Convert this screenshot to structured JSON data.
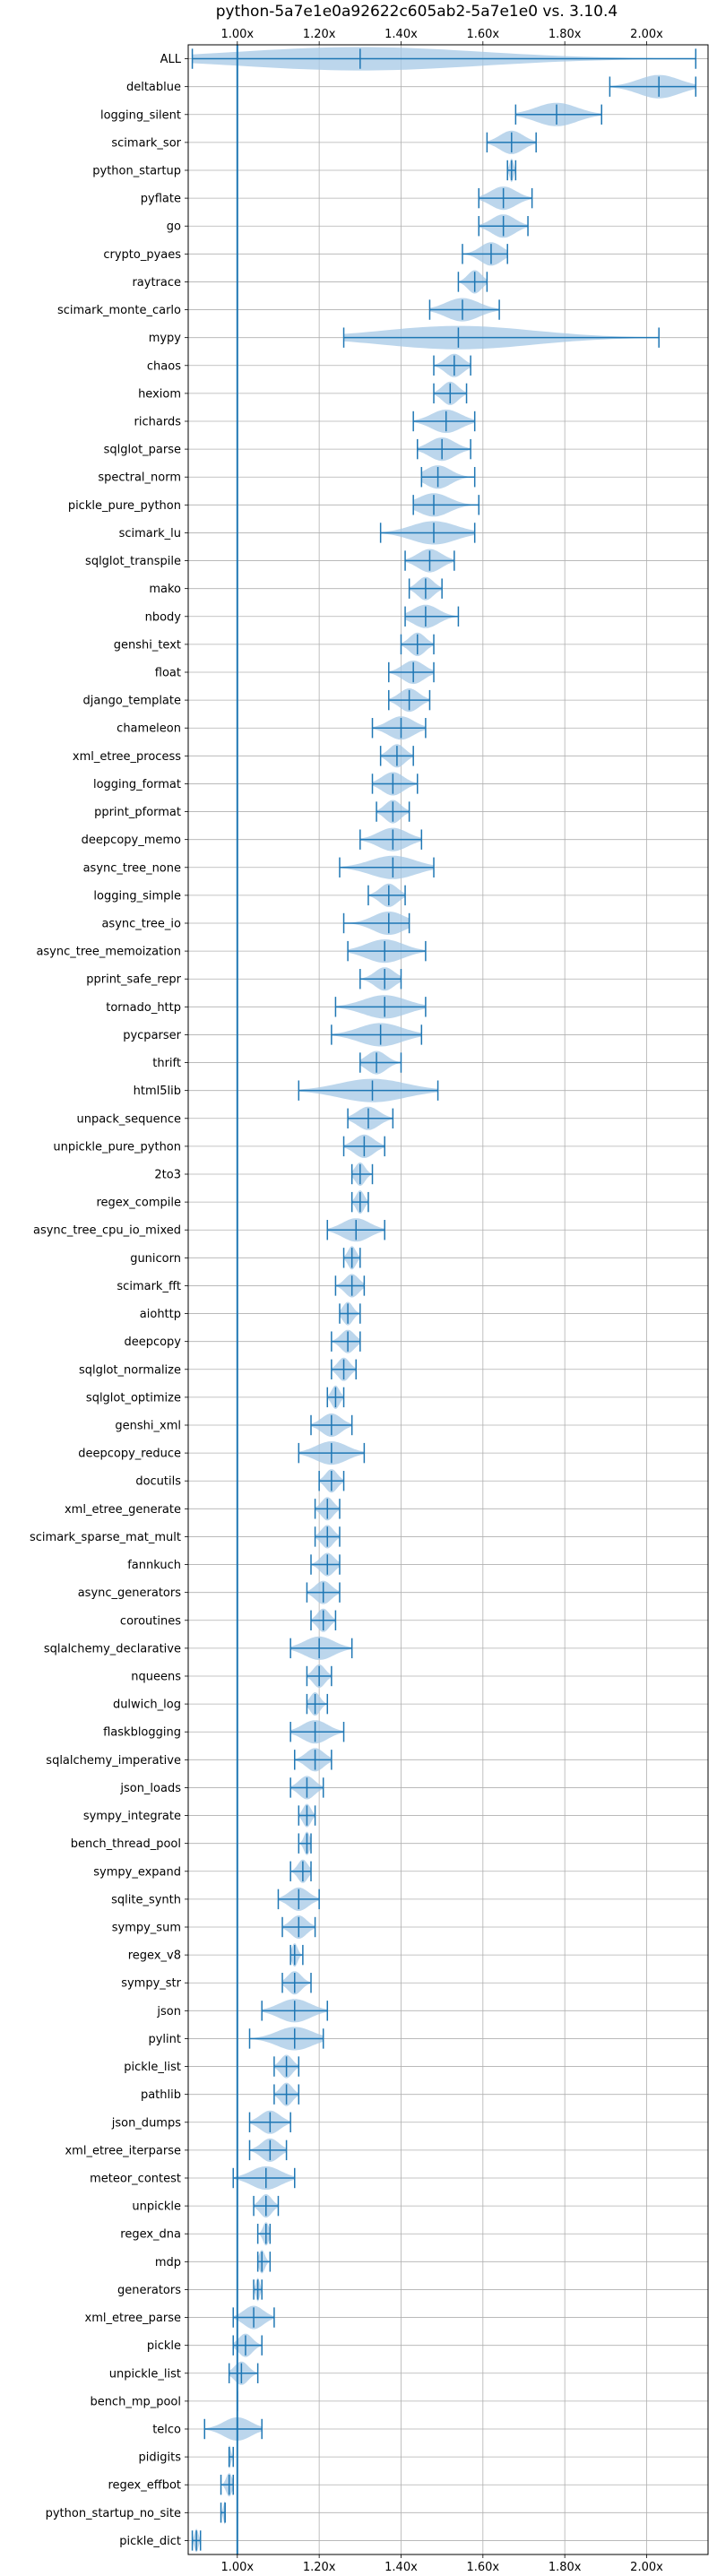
{
  "chart_data": {
    "type": "violin",
    "title": "python-5a7e1e0a92622c605ab2-5a7e1e0 vs. 3.10.4",
    "xlabel": "",
    "ylabel": "",
    "xlim": [
      0.88,
      2.15
    ],
    "x_ticks": [
      1.0,
      1.2,
      1.4,
      1.6,
      1.8,
      2.0
    ],
    "x_tick_labels": [
      "1.00x",
      "1.20x",
      "1.40x",
      "1.60x",
      "1.80x",
      "2.00x"
    ],
    "reference_line": 1.0,
    "grid": true,
    "color": "#1f77b4",
    "fill_color": "#a6c8e5",
    "benchmarks": [
      {
        "name": "ALL",
        "min": 0.89,
        "mean": 1.3,
        "max": 2.12
      },
      {
        "name": "deltablue",
        "min": 1.91,
        "mean": 2.03,
        "max": 2.12
      },
      {
        "name": "logging_silent",
        "min": 1.68,
        "mean": 1.78,
        "max": 1.89
      },
      {
        "name": "scimark_sor",
        "min": 1.61,
        "mean": 1.67,
        "max": 1.73
      },
      {
        "name": "python_startup",
        "min": 1.66,
        "mean": 1.67,
        "max": 1.68
      },
      {
        "name": "pyflate",
        "min": 1.59,
        "mean": 1.65,
        "max": 1.72
      },
      {
        "name": "go",
        "min": 1.59,
        "mean": 1.65,
        "max": 1.71
      },
      {
        "name": "crypto_pyaes",
        "min": 1.55,
        "mean": 1.62,
        "max": 1.66
      },
      {
        "name": "raytrace",
        "min": 1.54,
        "mean": 1.58,
        "max": 1.61
      },
      {
        "name": "scimark_monte_carlo",
        "min": 1.47,
        "mean": 1.55,
        "max": 1.64
      },
      {
        "name": "mypy",
        "min": 1.26,
        "mean": 1.54,
        "max": 2.03
      },
      {
        "name": "chaos",
        "min": 1.48,
        "mean": 1.53,
        "max": 1.57
      },
      {
        "name": "hexiom",
        "min": 1.48,
        "mean": 1.52,
        "max": 1.56
      },
      {
        "name": "richards",
        "min": 1.43,
        "mean": 1.51,
        "max": 1.58
      },
      {
        "name": "sqlglot_parse",
        "min": 1.44,
        "mean": 1.5,
        "max": 1.57
      },
      {
        "name": "spectral_norm",
        "min": 1.45,
        "mean": 1.49,
        "max": 1.58
      },
      {
        "name": "pickle_pure_python",
        "min": 1.43,
        "mean": 1.48,
        "max": 1.59
      },
      {
        "name": "scimark_lu",
        "min": 1.35,
        "mean": 1.48,
        "max": 1.58
      },
      {
        "name": "sqlglot_transpile",
        "min": 1.41,
        "mean": 1.47,
        "max": 1.53
      },
      {
        "name": "mako",
        "min": 1.42,
        "mean": 1.46,
        "max": 1.5
      },
      {
        "name": "nbody",
        "min": 1.41,
        "mean": 1.46,
        "max": 1.54
      },
      {
        "name": "genshi_text",
        "min": 1.4,
        "mean": 1.44,
        "max": 1.48
      },
      {
        "name": "float",
        "min": 1.37,
        "mean": 1.43,
        "max": 1.48
      },
      {
        "name": "django_template",
        "min": 1.37,
        "mean": 1.42,
        "max": 1.47
      },
      {
        "name": "chameleon",
        "min": 1.33,
        "mean": 1.4,
        "max": 1.46
      },
      {
        "name": "xml_etree_process",
        "min": 1.35,
        "mean": 1.39,
        "max": 1.43
      },
      {
        "name": "logging_format",
        "min": 1.33,
        "mean": 1.38,
        "max": 1.44
      },
      {
        "name": "pprint_pformat",
        "min": 1.34,
        "mean": 1.38,
        "max": 1.42
      },
      {
        "name": "deepcopy_memo",
        "min": 1.3,
        "mean": 1.38,
        "max": 1.45
      },
      {
        "name": "async_tree_none",
        "min": 1.25,
        "mean": 1.38,
        "max": 1.48
      },
      {
        "name": "logging_simple",
        "min": 1.32,
        "mean": 1.37,
        "max": 1.41
      },
      {
        "name": "async_tree_io",
        "min": 1.26,
        "mean": 1.37,
        "max": 1.42
      },
      {
        "name": "async_tree_memoization",
        "min": 1.27,
        "mean": 1.36,
        "max": 1.46
      },
      {
        "name": "pprint_safe_repr",
        "min": 1.3,
        "mean": 1.36,
        "max": 1.4
      },
      {
        "name": "tornado_http",
        "min": 1.24,
        "mean": 1.36,
        "max": 1.46
      },
      {
        "name": "pycparser",
        "min": 1.23,
        "mean": 1.35,
        "max": 1.45
      },
      {
        "name": "thrift",
        "min": 1.3,
        "mean": 1.34,
        "max": 1.4
      },
      {
        "name": "html5lib",
        "min": 1.15,
        "mean": 1.33,
        "max": 1.49
      },
      {
        "name": "unpack_sequence",
        "min": 1.27,
        "mean": 1.32,
        "max": 1.38
      },
      {
        "name": "unpickle_pure_python",
        "min": 1.26,
        "mean": 1.31,
        "max": 1.36
      },
      {
        "name": "2to3",
        "min": 1.28,
        "mean": 1.3,
        "max": 1.33
      },
      {
        "name": "regex_compile",
        "min": 1.28,
        "mean": 1.3,
        "max": 1.32
      },
      {
        "name": "async_tree_cpu_io_mixed",
        "min": 1.22,
        "mean": 1.29,
        "max": 1.36
      },
      {
        "name": "gunicorn",
        "min": 1.26,
        "mean": 1.28,
        "max": 1.3
      },
      {
        "name": "scimark_fft",
        "min": 1.24,
        "mean": 1.28,
        "max": 1.31
      },
      {
        "name": "aiohttp",
        "min": 1.25,
        "mean": 1.27,
        "max": 1.3
      },
      {
        "name": "deepcopy",
        "min": 1.23,
        "mean": 1.27,
        "max": 1.3
      },
      {
        "name": "sqlglot_normalize",
        "min": 1.23,
        "mean": 1.26,
        "max": 1.29
      },
      {
        "name": "sqlglot_optimize",
        "min": 1.22,
        "mean": 1.24,
        "max": 1.26
      },
      {
        "name": "genshi_xml",
        "min": 1.18,
        "mean": 1.23,
        "max": 1.28
      },
      {
        "name": "deepcopy_reduce",
        "min": 1.15,
        "mean": 1.23,
        "max": 1.31
      },
      {
        "name": "docutils",
        "min": 1.2,
        "mean": 1.23,
        "max": 1.26
      },
      {
        "name": "xml_etree_generate",
        "min": 1.19,
        "mean": 1.22,
        "max": 1.25
      },
      {
        "name": "scimark_sparse_mat_mult",
        "min": 1.19,
        "mean": 1.22,
        "max": 1.25
      },
      {
        "name": "fannkuch",
        "min": 1.18,
        "mean": 1.22,
        "max": 1.25
      },
      {
        "name": "async_generators",
        "min": 1.17,
        "mean": 1.21,
        "max": 1.25
      },
      {
        "name": "coroutines",
        "min": 1.18,
        "mean": 1.21,
        "max": 1.24
      },
      {
        "name": "sqlalchemy_declarative",
        "min": 1.13,
        "mean": 1.2,
        "max": 1.28
      },
      {
        "name": "nqueens",
        "min": 1.17,
        "mean": 1.2,
        "max": 1.23
      },
      {
        "name": "dulwich_log",
        "min": 1.17,
        "mean": 1.19,
        "max": 1.22
      },
      {
        "name": "flaskblogging",
        "min": 1.13,
        "mean": 1.19,
        "max": 1.26
      },
      {
        "name": "sqlalchemy_imperative",
        "min": 1.14,
        "mean": 1.19,
        "max": 1.23
      },
      {
        "name": "json_loads",
        "min": 1.13,
        "mean": 1.17,
        "max": 1.21
      },
      {
        "name": "sympy_integrate",
        "min": 1.15,
        "mean": 1.17,
        "max": 1.19
      },
      {
        "name": "bench_thread_pool",
        "min": 1.15,
        "mean": 1.17,
        "max": 1.18
      },
      {
        "name": "sympy_expand",
        "min": 1.13,
        "mean": 1.16,
        "max": 1.18
      },
      {
        "name": "sqlite_synth",
        "min": 1.1,
        "mean": 1.15,
        "max": 1.2
      },
      {
        "name": "sympy_sum",
        "min": 1.11,
        "mean": 1.15,
        "max": 1.19
      },
      {
        "name": "regex_v8",
        "min": 1.13,
        "mean": 1.14,
        "max": 1.16
      },
      {
        "name": "sympy_str",
        "min": 1.11,
        "mean": 1.14,
        "max": 1.18
      },
      {
        "name": "json",
        "min": 1.06,
        "mean": 1.14,
        "max": 1.22
      },
      {
        "name": "pylint",
        "min": 1.03,
        "mean": 1.14,
        "max": 1.21
      },
      {
        "name": "pickle_list",
        "min": 1.09,
        "mean": 1.12,
        "max": 1.15
      },
      {
        "name": "pathlib",
        "min": 1.09,
        "mean": 1.12,
        "max": 1.15
      },
      {
        "name": "json_dumps",
        "min": 1.03,
        "mean": 1.08,
        "max": 1.13
      },
      {
        "name": "xml_etree_iterparse",
        "min": 1.03,
        "mean": 1.08,
        "max": 1.12
      },
      {
        "name": "meteor_contest",
        "min": 0.99,
        "mean": 1.07,
        "max": 1.14
      },
      {
        "name": "unpickle",
        "min": 1.04,
        "mean": 1.07,
        "max": 1.1
      },
      {
        "name": "regex_dna",
        "min": 1.05,
        "mean": 1.07,
        "max": 1.08
      },
      {
        "name": "mdp",
        "min": 1.05,
        "mean": 1.06,
        "max": 1.08
      },
      {
        "name": "generators",
        "min": 1.04,
        "mean": 1.05,
        "max": 1.06
      },
      {
        "name": "xml_etree_parse",
        "min": 0.99,
        "mean": 1.04,
        "max": 1.09
      },
      {
        "name": "pickle",
        "min": 0.99,
        "mean": 1.02,
        "max": 1.06
      },
      {
        "name": "unpickle_list",
        "min": 0.98,
        "mean": 1.01,
        "max": 1.05
      },
      {
        "name": "bench_mp_pool",
        "min": 1.0,
        "mean": 1.0,
        "max": 1.0
      },
      {
        "name": "telco",
        "min": 0.92,
        "mean": 1.0,
        "max": 1.06
      },
      {
        "name": "pidigits",
        "min": 0.98,
        "mean": 0.98,
        "max": 0.99
      },
      {
        "name": "regex_effbot",
        "min": 0.96,
        "mean": 0.98,
        "max": 0.99
      },
      {
        "name": "python_startup_no_site",
        "min": 0.96,
        "mean": 0.97,
        "max": 0.97
      },
      {
        "name": "pickle_dict",
        "min": 0.89,
        "mean": 0.9,
        "max": 0.91
      }
    ]
  }
}
